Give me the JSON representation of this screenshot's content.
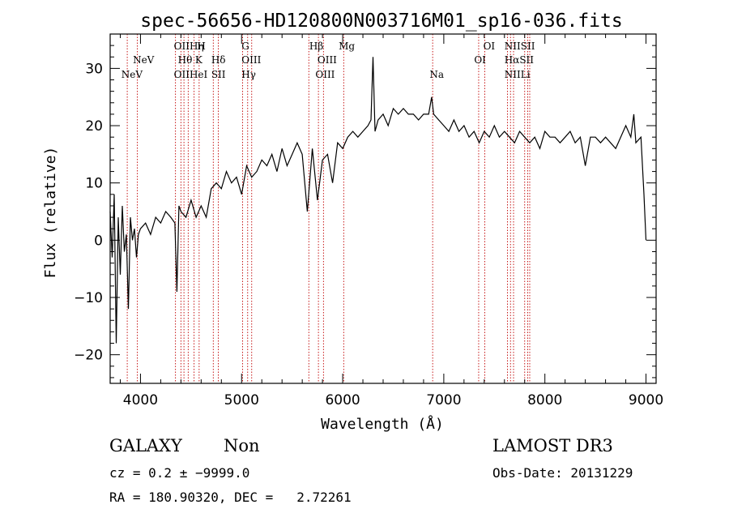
{
  "chart_data": {
    "type": "line",
    "title": "spec-56656-HD120800N003716M01_sp16-036.fits",
    "xlabel": "Wavelength (Å)",
    "ylabel": "Flux (relative)",
    "xlim": [
      3700,
      9100
    ],
    "ylim": [
      -25,
      36
    ],
    "xticks": [
      4000,
      5000,
      6000,
      7000,
      8000,
      9000
    ],
    "yticks": [
      -20,
      -10,
      0,
      10,
      20,
      30
    ],
    "tick_labels_x": [
      "4000",
      "5000",
      "6000",
      "7000",
      "8000",
      "9000"
    ],
    "tick_labels_y": [
      "−20",
      "−10",
      "0",
      "10",
      "20",
      "30"
    ],
    "series": [
      {
        "name": "flux",
        "x": [
          3700,
          3720,
          3740,
          3760,
          3780,
          3800,
          3820,
          3840,
          3860,
          3880,
          3900,
          3920,
          3940,
          3960,
          3980,
          4000,
          4050,
          4100,
          4150,
          4200,
          4250,
          4300,
          4340,
          4360,
          4380,
          4400,
          4450,
          4500,
          4550,
          4600,
          4650,
          4700,
          4750,
          4800,
          4850,
          4900,
          4950,
          5000,
          5050,
          5100,
          5150,
          5200,
          5250,
          5300,
          5350,
          5400,
          5450,
          5500,
          5550,
          5600,
          5650,
          5700,
          5750,
          5800,
          5850,
          5900,
          5950,
          6000,
          6050,
          6100,
          6150,
          6200,
          6250,
          6280,
          6300,
          6320,
          6350,
          6400,
          6450,
          6500,
          6550,
          6600,
          6650,
          6700,
          6750,
          6800,
          6850,
          6880,
          6900,
          6950,
          7000,
          7050,
          7100,
          7150,
          7200,
          7250,
          7300,
          7350,
          7400,
          7450,
          7500,
          7550,
          7600,
          7650,
          7700,
          7750,
          7800,
          7850,
          7900,
          7950,
          8000,
          8050,
          8100,
          8150,
          8200,
          8250,
          8300,
          8350,
          8400,
          8450,
          8500,
          8550,
          8600,
          8650,
          8700,
          8750,
          8800,
          8850,
          8880,
          8900,
          8950,
          8980,
          9000
        ],
        "y": [
          5,
          -3,
          8,
          -18,
          4,
          -6,
          6,
          -2,
          1,
          -12,
          4,
          0,
          2,
          -3,
          1,
          2,
          3,
          1,
          4,
          3,
          5,
          4,
          3,
          -9,
          6,
          5,
          4,
          7,
          4,
          6,
          4,
          9,
          10,
          9,
          12,
          10,
          11,
          8,
          13,
          11,
          12,
          14,
          13,
          15,
          12,
          16,
          13,
          15,
          17,
          15,
          5,
          16,
          7,
          14,
          15,
          10,
          17,
          16,
          18,
          19,
          18,
          19,
          20,
          21,
          32,
          19,
          21,
          22,
          20,
          23,
          22,
          23,
          22,
          22,
          21,
          22,
          22,
          25,
          22,
          21,
          20,
          19,
          21,
          19,
          20,
          18,
          19,
          17,
          19,
          18,
          20,
          18,
          19,
          18,
          17,
          19,
          18,
          17,
          18,
          16,
          19,
          18,
          18,
          17,
          18,
          19,
          17,
          18,
          13,
          18,
          18,
          17,
          18,
          17,
          16,
          18,
          20,
          18,
          22,
          17,
          18,
          8,
          0
        ]
      }
    ],
    "lines": [
      {
        "name": "NeV",
        "x": 3869
      },
      {
        "name": "NeV",
        "x": 3969
      },
      {
        "name": "OII",
        "x": 4346
      },
      {
        "name": "Hη",
        "x": 4400
      },
      {
        "name": "Hθ",
        "x": 4430
      },
      {
        "name": "HeI",
        "x": 4472
      },
      {
        "name": "H",
        "x": 4530
      },
      {
        "name": "K",
        "x": 4580
      },
      {
        "name": "Hδ",
        "x": 4720
      },
      {
        "name": "SII",
        "x": 4770
      },
      {
        "name": "G",
        "x": 5010
      },
      {
        "name": "OIII",
        "x": 5060
      },
      {
        "name": "Hγ",
        "x": 5100
      },
      {
        "name": "Hβ",
        "x": 5665
      },
      {
        "name": "OIII",
        "x": 5760
      },
      {
        "name": "OIII",
        "x": 5810
      },
      {
        "name": "Mg",
        "x": 6010
      },
      {
        "name": "Na",
        "x": 6890
      },
      {
        "name": "OI",
        "x": 7345
      },
      {
        "name": "OI",
        "x": 7405
      },
      {
        "name": "NII",
        "x": 7630
      },
      {
        "name": "Hα",
        "x": 7660
      },
      {
        "name": "NII",
        "x": 7690
      },
      {
        "name": "SII",
        "x": 7800
      },
      {
        "name": "Li",
        "x": 7830
      },
      {
        "name": "SII",
        "x": 7850
      }
    ],
    "line_labels": [
      {
        "text": "NeV",
        "x": 3810,
        "row": 3
      },
      {
        "text": "NeV",
        "x": 3925,
        "row": 2
      },
      {
        "text": "OIIHη",
        "x": 4330,
        "row": 1
      },
      {
        "text": "H",
        "x": 4560,
        "row": 1
      },
      {
        "text": "Hθ",
        "x": 4370,
        "row": 2
      },
      {
        "text": "K",
        "x": 4540,
        "row": 2
      },
      {
        "text": "Hδ",
        "x": 4700,
        "row": 2
      },
      {
        "text": "OIIHeI",
        "x": 4330,
        "row": 3
      },
      {
        "text": "SII",
        "x": 4700,
        "row": 3
      },
      {
        "text": "G",
        "x": 5000,
        "row": 1
      },
      {
        "text": "OIII",
        "x": 5000,
        "row": 2
      },
      {
        "text": "Hγ",
        "x": 5000,
        "row": 3
      },
      {
        "text": "Hβ",
        "x": 5670,
        "row": 1
      },
      {
        "text": "OIII",
        "x": 5750,
        "row": 2
      },
      {
        "text": "OIII",
        "x": 5730,
        "row": 3
      },
      {
        "text": "Mg",
        "x": 5960,
        "row": 1
      },
      {
        "text": "Na",
        "x": 6860,
        "row": 3
      },
      {
        "text": "OI",
        "x": 7390,
        "row": 1
      },
      {
        "text": "OI",
        "x": 7300,
        "row": 2
      },
      {
        "text": "NIISII",
        "x": 7600,
        "row": 1
      },
      {
        "text": "HαSII",
        "x": 7600,
        "row": 2
      },
      {
        "text": "NIILi",
        "x": 7600,
        "row": 3
      }
    ]
  },
  "info": {
    "object_class": "GALAXY",
    "subclass": "Non",
    "cz": "cz = 0.2 ± −9999.0",
    "coords": "RA = 180.90320, DEC =   2.72261",
    "survey": "LAMOST DR3",
    "obs_date": "Obs-Date: 20131229"
  },
  "colors": {
    "axis": "#000000",
    "spectrum": "#000000",
    "emission_line": "#c00000",
    "background": "#ffffff"
  }
}
